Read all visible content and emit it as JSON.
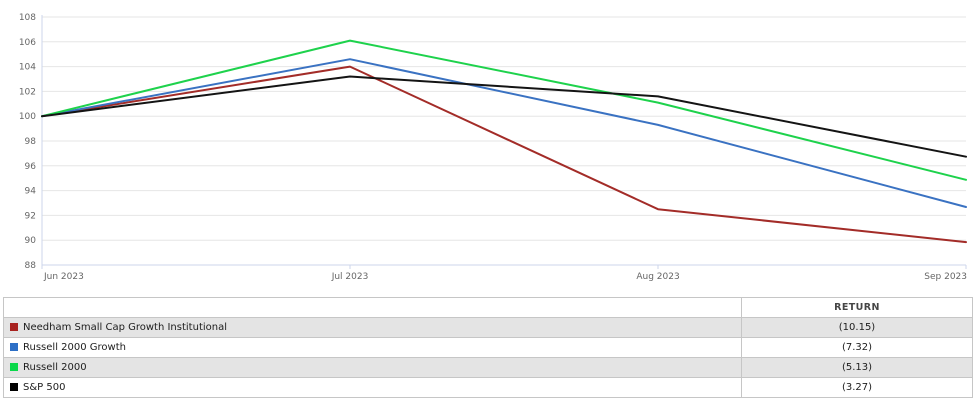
{
  "chart_data": {
    "type": "line",
    "title": "",
    "x_labels": [
      "Jun 2023",
      "Jul 2023",
      "Aug 2023",
      "Sep 2023"
    ],
    "y_ticks": [
      88,
      90,
      92,
      94,
      96,
      98,
      100,
      102,
      104,
      106,
      108
    ],
    "ylim": [
      88,
      108
    ],
    "grid": true,
    "legend_position": "table-below",
    "axis_color": "#ccd6eb",
    "grid_color": "#e6e6e6",
    "label_color": "#666666",
    "series": [
      {
        "name": "Needham Small Cap Growth Institutional",
        "color": "#a32c28",
        "values": [
          100,
          104.0,
          92.5,
          89.85
        ]
      },
      {
        "name": "Russell 2000 Growth",
        "color": "#3a72c2",
        "values": [
          100,
          104.6,
          99.3,
          92.68
        ]
      },
      {
        "name": "Russell 2000",
        "color": "#1ed24c",
        "values": [
          100,
          106.1,
          101.1,
          94.87
        ]
      },
      {
        "name": "S&P 500",
        "color": "#141414",
        "values": [
          100,
          103.2,
          101.6,
          96.73
        ]
      }
    ]
  },
  "table": {
    "name_header": "",
    "return_header": "RETURN",
    "rows": [
      {
        "name": "Needham Small Cap Growth Institutional",
        "return": "(10.15)",
        "color": "#a8221f"
      },
      {
        "name": "Russell 2000 Growth",
        "return": "(7.32)",
        "color": "#2d6fc6"
      },
      {
        "name": "Russell 2000",
        "return": "(5.13)",
        "color": "#0ad84a"
      },
      {
        "name": "S&P 500",
        "return": "(3.27)",
        "color": "#000000"
      }
    ]
  }
}
